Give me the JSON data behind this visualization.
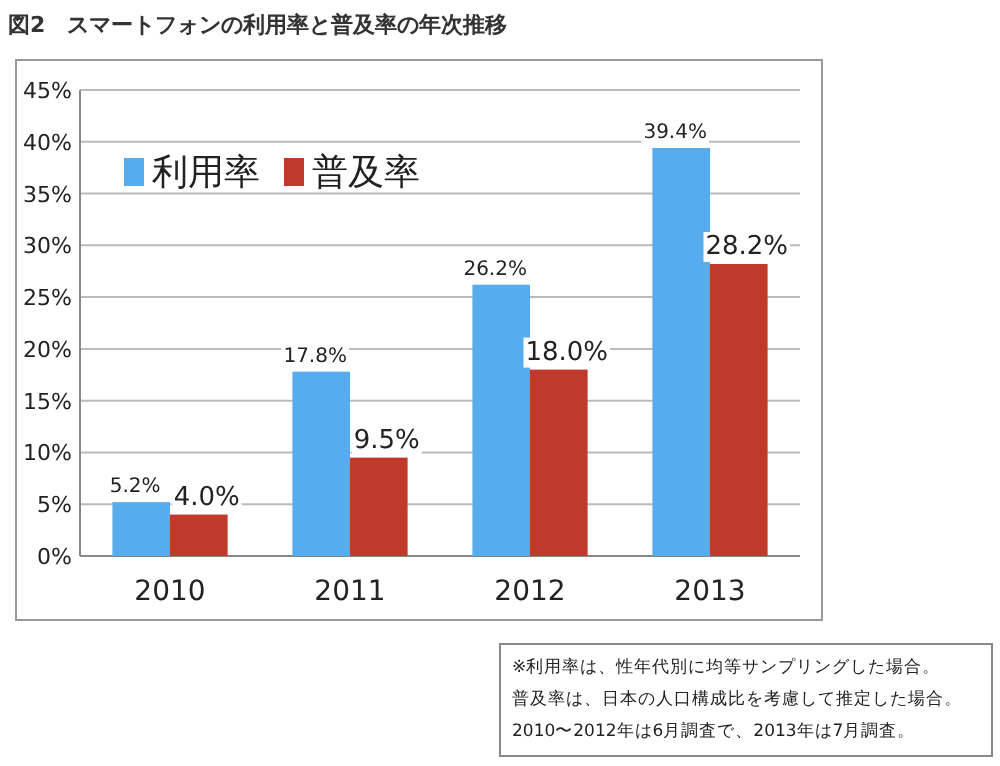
{
  "chart_data": {
    "type": "bar",
    "title": "図2　スマートフォンの利用率と普及率の年次推移",
    "categories": [
      "2010",
      "2011",
      "2012",
      "2013"
    ],
    "series": [
      {
        "name": "利用率",
        "color": "#56acec",
        "values": [
          5.2,
          17.8,
          26.2,
          39.4
        ],
        "value_labels": [
          "5.2%",
          "17.8%",
          "26.2%",
          "39.4%"
        ]
      },
      {
        "name": "普及率",
        "color": "#c0392b",
        "values": [
          4.0,
          9.5,
          18.0,
          28.2
        ],
        "value_labels": [
          "4.0%",
          "9.5%",
          "18.0%",
          "28.2%"
        ]
      }
    ],
    "ylim": [
      0,
      45
    ],
    "yticks": [
      {
        "value": 0,
        "label": "0%"
      },
      {
        "value": 5,
        "label": "5%"
      },
      {
        "value": 10,
        "label": "10%"
      },
      {
        "value": 15,
        "label": "15%"
      },
      {
        "value": 20,
        "label": "20%"
      },
      {
        "value": 25,
        "label": "25%"
      },
      {
        "value": 30,
        "label": "30%"
      },
      {
        "value": 35,
        "label": "35%"
      },
      {
        "value": 40,
        "label": "40%"
      },
      {
        "value": 45,
        "label": "45%"
      }
    ],
    "grid": "y",
    "legend": "top left",
    "annotations": [
      "※利用率は、性年代別に均等サンプリングした場合。",
      "普及率は、日本の人口構成比を考慮して推定した場合。",
      "2010〜2012年は6月調査で、2013年は7月調査。"
    ]
  }
}
